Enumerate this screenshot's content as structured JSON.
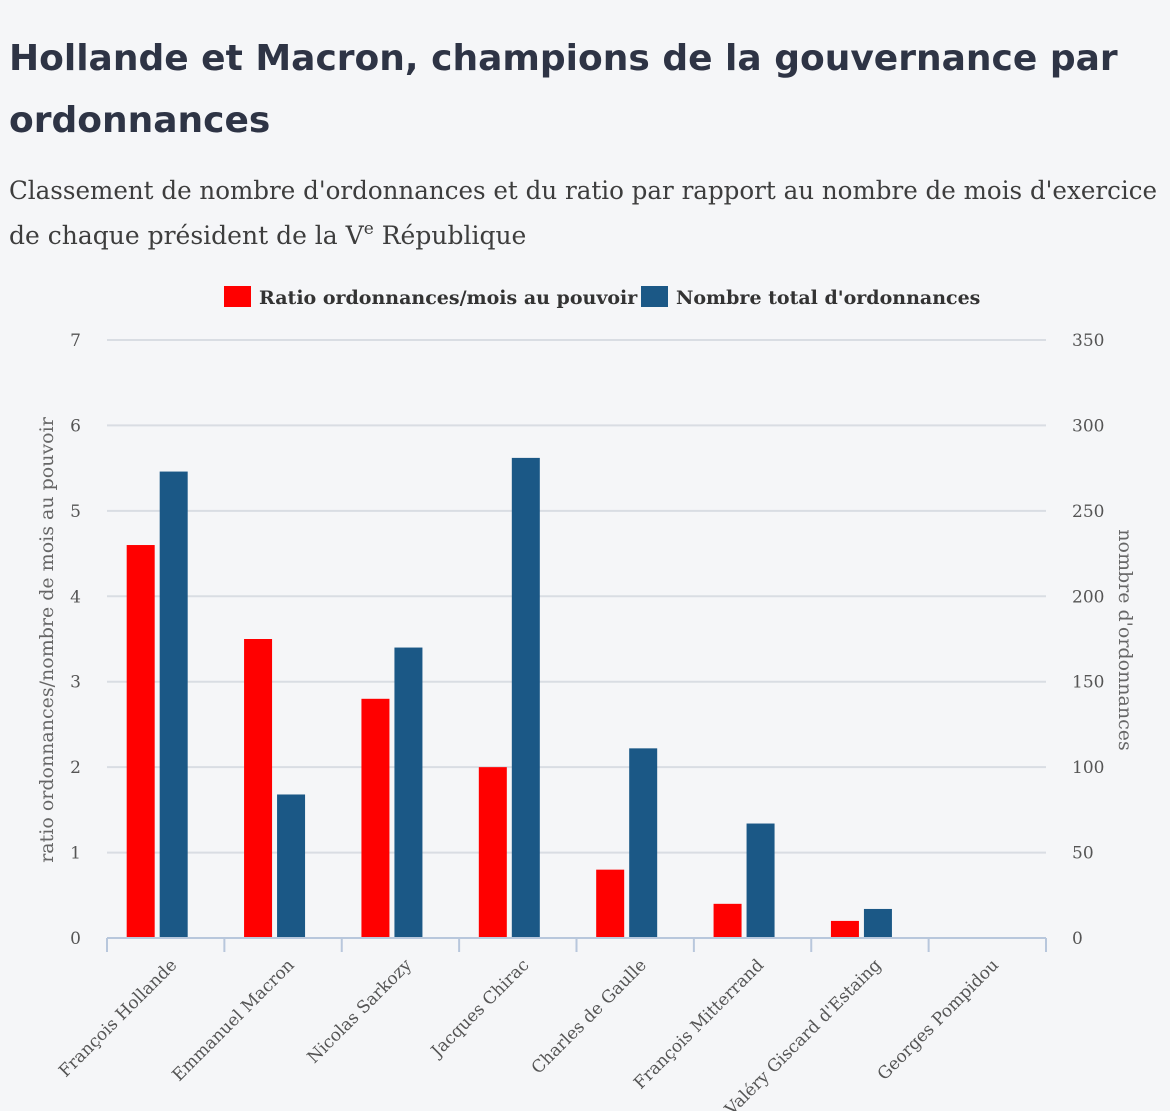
{
  "chart_data": {
    "type": "bar",
    "title_lines": [
      "Hollande et Macron, champions de la gouvernance par",
      "ordonnances"
    ],
    "subtitle_lines": [
      "Classement de nombre d'ordonnances et du ratio par rapport au nombre de mois d'exercice",
      "de chaque président de la V"
    ],
    "subtitle_sup": "e",
    "subtitle_tail": " République",
    "categories": [
      "François Hollande",
      "Emmanuel Macron",
      "Nicolas Sarkozy",
      "Jacques Chirac",
      "Charles de Gaulle",
      "François Mitterrand",
      "Valéry Giscard d'Estaing",
      "Georges Pompidou"
    ],
    "series": [
      {
        "name": "Ratio ordonnances/mois au pouvoir",
        "axis": "left",
        "color": "#ff0000",
        "values": [
          4.6,
          3.5,
          2.8,
          2.0,
          0.8,
          0.4,
          0.2,
          0
        ]
      },
      {
        "name": "Nombre total d'ordonnances",
        "axis": "right",
        "color": "#1b5886",
        "values": [
          273,
          84,
          170,
          281,
          111,
          67,
          17,
          0
        ]
      }
    ],
    "y_left": {
      "label": "ratio ordonnances/nombre de mois au pouvoir",
      "ylim": [
        0,
        7
      ],
      "ticks": [
        "0",
        "1",
        "2",
        "3",
        "4",
        "5",
        "6",
        "7"
      ]
    },
    "y_right": {
      "label": "nombre d'ordonnances",
      "ylim": [
        0,
        350
      ],
      "ticks": [
        "0",
        "50",
        "100",
        "150",
        "200",
        "250",
        "300",
        "350"
      ]
    },
    "grid": true,
    "legend_position": "top-center"
  }
}
